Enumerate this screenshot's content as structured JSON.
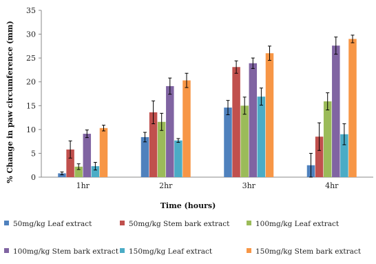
{
  "chart_data": {
    "type": "bar",
    "xlabel": "Time (hours)",
    "ylabel": "% Change in paw circumference (mm)",
    "categories": [
      "1hr",
      "2hr",
      "3hr",
      "4hr"
    ],
    "ylim": [
      0,
      35
    ],
    "yticks": [
      0,
      5,
      10,
      15,
      20,
      25,
      30,
      35
    ],
    "grid": false,
    "legend_position": "bottom",
    "series": [
      {
        "name": "50mg/kg Leaf extract",
        "color": "#4f81bd",
        "values": [
          0.8,
          8.4,
          14.6,
          2.5
        ],
        "errors": [
          0.3,
          1.0,
          1.5,
          2.5
        ]
      },
      {
        "name": "50mg/kg Stem bark extract",
        "color": "#c0504d",
        "values": [
          5.8,
          13.6,
          23.1,
          8.5
        ],
        "errors": [
          1.8,
          2.4,
          1.3,
          2.9
        ]
      },
      {
        "name": "100mg/kg Leaf extract",
        "color": "#9bbb59",
        "values": [
          2.2,
          11.6,
          15.0,
          15.9
        ],
        "errors": [
          0.6,
          1.8,
          1.8,
          1.8
        ]
      },
      {
        "name": "100mg/kg Stem bark extract",
        "color": "#8064a2",
        "values": [
          9.1,
          19.1,
          23.9,
          27.6
        ],
        "errors": [
          0.8,
          1.7,
          1.1,
          1.8
        ]
      },
      {
        "name": "150mg/kg Leaf extract",
        "color": "#4bacc6",
        "values": [
          2.3,
          7.7,
          16.9,
          9.0
        ],
        "errors": [
          0.8,
          0.4,
          1.8,
          2.2
        ]
      },
      {
        "name": "150mg/kg Stem  bark extract",
        "color": "#f79646",
        "values": [
          10.3,
          20.3,
          26.0,
          29.0
        ],
        "errors": [
          0.6,
          1.5,
          1.5,
          0.8
        ]
      }
    ]
  }
}
